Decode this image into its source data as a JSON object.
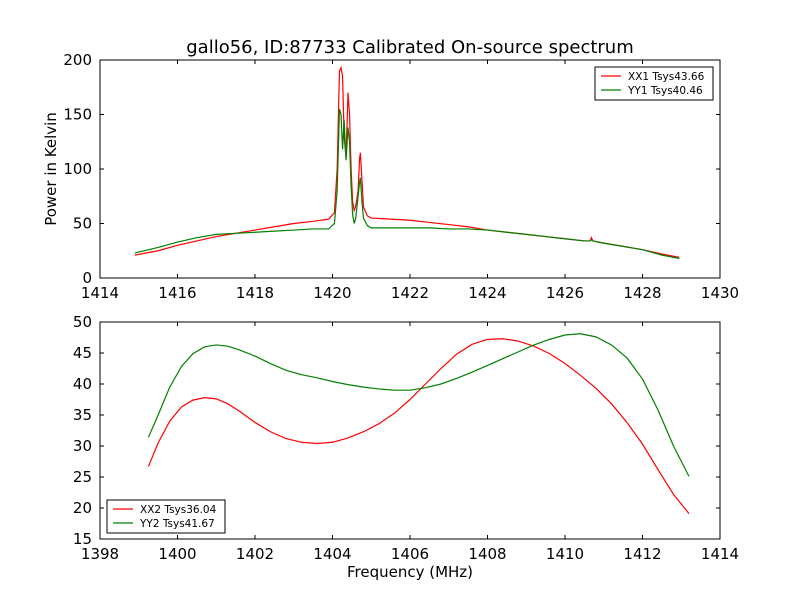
{
  "figure": {
    "title": "gallo56, ID:87733 Calibrated On-source spectrum"
  },
  "chart_data": [
    {
      "type": "line",
      "title": "gallo56, ID:87733 Calibrated On-source spectrum",
      "xlabel": "",
      "ylabel": "Power in Kelvin",
      "xlim": [
        1414,
        1430
      ],
      "ylim": [
        0,
        200
      ],
      "xticks": [
        1414,
        1416,
        1418,
        1420,
        1422,
        1424,
        1426,
        1428,
        1430
      ],
      "yticks": [
        0,
        50,
        100,
        150,
        200
      ],
      "legend_position": "top-right",
      "grid": false,
      "series": [
        {
          "name": "XX1 Tsys43.66",
          "color": "#ff0000",
          "x": [
            1414.9,
            1415.5,
            1416.0,
            1416.5,
            1417.0,
            1417.5,
            1418.0,
            1418.5,
            1419.0,
            1419.5,
            1419.9,
            1420.05,
            1420.12,
            1420.18,
            1420.22,
            1420.26,
            1420.3,
            1420.35,
            1420.4,
            1420.44,
            1420.48,
            1420.52,
            1420.56,
            1420.6,
            1420.66,
            1420.7,
            1420.72,
            1420.76,
            1420.8,
            1420.9,
            1421.0,
            1421.5,
            1422.0,
            1422.5,
            1423.0,
            1423.5,
            1424.0,
            1424.5,
            1425.0,
            1425.5,
            1426.0,
            1426.5,
            1426.65,
            1426.68,
            1426.72,
            1427.0,
            1427.5,
            1428.0,
            1428.5,
            1428.95
          ],
          "y": [
            21,
            25,
            30,
            34,
            38,
            41,
            44,
            47,
            50,
            52,
            54,
            60,
            100,
            190,
            193,
            185,
            130,
            110,
            170,
            150,
            100,
            70,
            62,
            66,
            80,
            110,
            115,
            90,
            65,
            57,
            55,
            54,
            53,
            51,
            49,
            47,
            44,
            42,
            40,
            38,
            36,
            34,
            34,
            37,
            34,
            32,
            29,
            26,
            22,
            19
          ]
        },
        {
          "name": "YY1 Tsys40.46",
          "color": "#008000",
          "x": [
            1414.9,
            1415.5,
            1416.0,
            1416.5,
            1417.0,
            1417.5,
            1418.0,
            1418.5,
            1419.0,
            1419.5,
            1419.9,
            1420.05,
            1420.12,
            1420.18,
            1420.22,
            1420.26,
            1420.3,
            1420.35,
            1420.4,
            1420.44,
            1420.48,
            1420.52,
            1420.56,
            1420.6,
            1420.66,
            1420.7,
            1420.72,
            1420.76,
            1420.8,
            1420.9,
            1421.0,
            1421.5,
            1422.0,
            1422.5,
            1423.0,
            1423.5,
            1424.0,
            1424.5,
            1425.0,
            1425.5,
            1426.0,
            1426.5,
            1426.65,
            1426.68,
            1426.72,
            1427.0,
            1427.5,
            1428.0,
            1428.5,
            1428.95
          ],
          "y": [
            23,
            28,
            33,
            37,
            40,
            41,
            42,
            43,
            44,
            45,
            45,
            50,
            80,
            155,
            150,
            118,
            145,
            108,
            138,
            125,
            85,
            58,
            50,
            55,
            75,
            88,
            92,
            70,
            55,
            48,
            46,
            46,
            46,
            46,
            45,
            45,
            44,
            42,
            40,
            38,
            36,
            34,
            34,
            35,
            34,
            32,
            29,
            26,
            21,
            18
          ]
        }
      ]
    },
    {
      "type": "line",
      "title": "",
      "xlabel": "Frequency (MHz)",
      "ylabel": "",
      "xlim": [
        1398,
        1414
      ],
      "ylim": [
        15,
        50
      ],
      "xticks": [
        1398,
        1400,
        1402,
        1404,
        1406,
        1408,
        1410,
        1412,
        1414
      ],
      "yticks": [
        15,
        20,
        25,
        30,
        35,
        40,
        45,
        50
      ],
      "legend_position": "bottom-left",
      "grid": false,
      "series": [
        {
          "name": "XX2 Tsys36.04",
          "color": "#ff0000",
          "x": [
            1399.25,
            1399.5,
            1399.8,
            1400.1,
            1400.4,
            1400.7,
            1401.0,
            1401.3,
            1401.6,
            1402.0,
            1402.4,
            1402.8,
            1403.2,
            1403.6,
            1404.0,
            1404.4,
            1404.8,
            1405.2,
            1405.6,
            1406.0,
            1406.4,
            1406.8,
            1407.2,
            1407.6,
            1408.0,
            1408.4,
            1408.8,
            1409.2,
            1409.6,
            1410.0,
            1410.4,
            1410.8,
            1411.2,
            1411.6,
            1412.0,
            1412.4,
            1412.8,
            1413.2
          ],
          "y": [
            26.7,
            30.5,
            34.0,
            36.3,
            37.4,
            37.8,
            37.6,
            36.8,
            35.6,
            33.8,
            32.3,
            31.2,
            30.6,
            30.4,
            30.6,
            31.3,
            32.3,
            33.6,
            35.3,
            37.5,
            40.0,
            42.5,
            44.8,
            46.4,
            47.2,
            47.3,
            46.9,
            46.1,
            44.9,
            43.3,
            41.4,
            39.3,
            36.8,
            33.8,
            30.3,
            26.2,
            22.2,
            19.1
          ]
        },
        {
          "name": "YY2 Tsys41.67",
          "color": "#008000",
          "x": [
            1399.25,
            1399.5,
            1399.8,
            1400.1,
            1400.4,
            1400.7,
            1401.0,
            1401.3,
            1401.6,
            1402.0,
            1402.4,
            1402.8,
            1403.2,
            1403.6,
            1404.0,
            1404.4,
            1404.8,
            1405.2,
            1405.6,
            1406.0,
            1406.4,
            1406.8,
            1407.2,
            1407.6,
            1408.0,
            1408.4,
            1408.8,
            1409.2,
            1409.6,
            1410.0,
            1410.4,
            1410.8,
            1411.2,
            1411.6,
            1412.0,
            1412.4,
            1412.8,
            1413.2
          ],
          "y": [
            31.4,
            35.0,
            39.5,
            42.8,
            44.9,
            46.0,
            46.3,
            46.1,
            45.5,
            44.5,
            43.3,
            42.2,
            41.5,
            41.0,
            40.4,
            39.9,
            39.5,
            39.2,
            39.0,
            39.0,
            39.4,
            40.0,
            40.9,
            41.9,
            43.0,
            44.1,
            45.2,
            46.3,
            47.2,
            47.9,
            48.1,
            47.6,
            46.3,
            44.2,
            40.8,
            35.8,
            30.0,
            25.1
          ]
        }
      ]
    }
  ]
}
